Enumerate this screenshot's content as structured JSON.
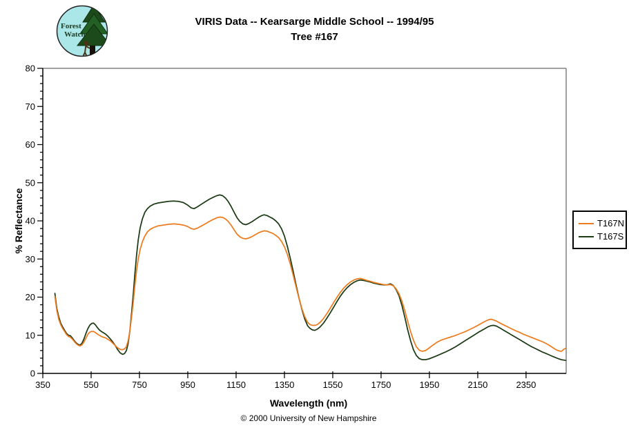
{
  "header": {
    "logo": {
      "line1": "Forest",
      "line2": "Watch"
    },
    "title_line1": "VIRIS Data -- Kearsarge Middle School -- 1994/95",
    "title_line2": "Tree #167"
  },
  "footer": {
    "copyright": "© 2000 University of New Hampshire"
  },
  "chart_data": {
    "type": "line",
    "title": "VIRIS Data -- Kearsarge Middle School -- 1994/95  Tree #167",
    "xlabel": "Wavelength (nm)",
    "ylabel": "% Reflectance",
    "x_range": [
      350,
      2516
    ],
    "y_range": [
      0,
      80
    ],
    "x_ticks": [
      350,
      550,
      750,
      950,
      1150,
      1350,
      1550,
      1750,
      1950,
      2150,
      2350
    ],
    "y_ticks": [
      0,
      10,
      20,
      30,
      40,
      50,
      60,
      70,
      80
    ],
    "y_minor_step": 2,
    "grid": "off",
    "legend_position": "right",
    "axis_color": "#000000",
    "frame_color": "#808080",
    "series": [
      {
        "name": "T167N",
        "color": "#ee7b1d"
      },
      {
        "name": "T167S",
        "color": "#1b3a13"
      }
    ],
    "points_format": [
      "wavelength_nm",
      "T167N",
      "T167S"
    ],
    "points": [
      [
        400,
        20.2,
        21.0
      ],
      [
        408,
        16.5,
        17.0
      ],
      [
        416,
        14.2,
        14.8
      ],
      [
        424,
        12.8,
        13.2
      ],
      [
        432,
        11.8,
        12.2
      ],
      [
        440,
        11.0,
        11.3
      ],
      [
        448,
        10.2,
        10.5
      ],
      [
        456,
        9.7,
        10.0
      ],
      [
        464,
        9.5,
        9.9
      ],
      [
        472,
        9.0,
        9.3
      ],
      [
        480,
        8.4,
        8.6
      ],
      [
        488,
        7.8,
        8.0
      ],
      [
        496,
        7.4,
        7.6
      ],
      [
        504,
        7.2,
        7.4
      ],
      [
        512,
        7.5,
        7.9
      ],
      [
        520,
        8.2,
        9.0
      ],
      [
        528,
        9.2,
        10.4
      ],
      [
        536,
        10.2,
        11.7
      ],
      [
        544,
        10.8,
        12.6
      ],
      [
        552,
        11.0,
        13.1
      ],
      [
        560,
        11.0,
        13.2
      ],
      [
        568,
        10.7,
        12.7
      ],
      [
        576,
        10.3,
        12.0
      ],
      [
        584,
        10.0,
        11.4
      ],
      [
        592,
        9.7,
        11.0
      ],
      [
        600,
        9.5,
        10.7
      ],
      [
        610,
        9.3,
        10.3
      ],
      [
        620,
        8.9,
        9.7
      ],
      [
        630,
        8.5,
        9.0
      ],
      [
        640,
        7.9,
        8.2
      ],
      [
        650,
        7.3,
        7.3
      ],
      [
        660,
        6.7,
        6.2
      ],
      [
        670,
        6.3,
        5.4
      ],
      [
        680,
        6.2,
        5.0
      ],
      [
        688,
        6.4,
        5.2
      ],
      [
        696,
        7.0,
        6.0
      ],
      [
        703,
        8.5,
        7.8
      ],
      [
        710,
        11.0,
        11.0
      ],
      [
        717,
        14.5,
        15.5
      ],
      [
        724,
        18.5,
        20.5
      ],
      [
        731,
        23.0,
        26.0
      ],
      [
        738,
        27.0,
        31.0
      ],
      [
        745,
        30.0,
        35.0
      ],
      [
        753,
        32.5,
        38.2
      ],
      [
        762,
        34.5,
        40.5
      ],
      [
        772,
        36.0,
        42.2
      ],
      [
        783,
        37.1,
        43.2
      ],
      [
        795,
        37.8,
        43.9
      ],
      [
        810,
        38.3,
        44.4
      ],
      [
        828,
        38.7,
        44.7
      ],
      [
        848,
        38.9,
        44.9
      ],
      [
        870,
        39.1,
        45.1
      ],
      [
        892,
        39.2,
        45.2
      ],
      [
        912,
        39.1,
        45.1
      ],
      [
        932,
        38.9,
        44.8
      ],
      [
        950,
        38.5,
        44.1
      ],
      [
        964,
        38.0,
        43.4
      ],
      [
        976,
        37.8,
        43.2
      ],
      [
        990,
        38.1,
        43.7
      ],
      [
        1005,
        38.6,
        44.3
      ],
      [
        1022,
        39.2,
        45.0
      ],
      [
        1040,
        39.9,
        45.7
      ],
      [
        1056,
        40.4,
        46.2
      ],
      [
        1070,
        40.8,
        46.6
      ],
      [
        1082,
        41.0,
        46.8
      ],
      [
        1094,
        40.9,
        46.6
      ],
      [
        1106,
        40.5,
        46.0
      ],
      [
        1118,
        39.8,
        45.0
      ],
      [
        1130,
        38.8,
        43.7
      ],
      [
        1142,
        37.6,
        42.2
      ],
      [
        1154,
        36.5,
        40.8
      ],
      [
        1166,
        35.8,
        39.8
      ],
      [
        1178,
        35.4,
        39.2
      ],
      [
        1190,
        35.3,
        39.0
      ],
      [
        1202,
        35.5,
        39.3
      ],
      [
        1216,
        35.9,
        39.8
      ],
      [
        1230,
        36.4,
        40.4
      ],
      [
        1244,
        36.9,
        41.0
      ],
      [
        1256,
        37.2,
        41.4
      ],
      [
        1266,
        37.4,
        41.6
      ],
      [
        1278,
        37.3,
        41.4
      ],
      [
        1290,
        37.0,
        41.0
      ],
      [
        1302,
        36.7,
        40.6
      ],
      [
        1314,
        36.2,
        40.0
      ],
      [
        1326,
        35.6,
        39.2
      ],
      [
        1338,
        34.6,
        37.9
      ],
      [
        1350,
        33.2,
        36.0
      ],
      [
        1362,
        31.2,
        33.3
      ],
      [
        1374,
        28.7,
        30.2
      ],
      [
        1386,
        25.8,
        26.8
      ],
      [
        1398,
        22.7,
        23.2
      ],
      [
        1410,
        19.7,
        19.8
      ],
      [
        1422,
        17.0,
        16.8
      ],
      [
        1434,
        14.9,
        14.3
      ],
      [
        1446,
        13.4,
        12.5
      ],
      [
        1456,
        12.8,
        11.8
      ],
      [
        1466,
        12.6,
        11.4
      ],
      [
        1476,
        12.6,
        11.3
      ],
      [
        1486,
        12.8,
        11.6
      ],
      [
        1498,
        13.4,
        12.2
      ],
      [
        1512,
        14.4,
        13.2
      ],
      [
        1526,
        15.7,
        14.5
      ],
      [
        1540,
        17.1,
        15.9
      ],
      [
        1554,
        18.6,
        17.4
      ],
      [
        1568,
        20.0,
        18.9
      ],
      [
        1582,
        21.3,
        20.3
      ],
      [
        1596,
        22.4,
        21.5
      ],
      [
        1610,
        23.3,
        22.5
      ],
      [
        1624,
        24.0,
        23.3
      ],
      [
        1638,
        24.5,
        23.9
      ],
      [
        1652,
        24.8,
        24.3
      ],
      [
        1664,
        24.9,
        24.5
      ],
      [
        1676,
        24.7,
        24.4
      ],
      [
        1690,
        24.4,
        24.2
      ],
      [
        1704,
        24.2,
        24.0
      ],
      [
        1718,
        23.9,
        23.7
      ],
      [
        1732,
        23.7,
        23.5
      ],
      [
        1746,
        23.5,
        23.3
      ],
      [
        1760,
        23.3,
        23.2
      ],
      [
        1774,
        23.2,
        23.2
      ],
      [
        1788,
        23.3,
        23.5
      ],
      [
        1800,
        23.0,
        23.1
      ],
      [
        1812,
        22.2,
        22.0
      ],
      [
        1824,
        20.9,
        20.4
      ],
      [
        1836,
        19.0,
        17.9
      ],
      [
        1848,
        16.5,
        14.8
      ],
      [
        1860,
        13.7,
        11.5
      ],
      [
        1872,
        11.0,
        8.6
      ],
      [
        1884,
        8.7,
        6.2
      ],
      [
        1896,
        7.0,
        4.7
      ],
      [
        1908,
        6.1,
        3.9
      ],
      [
        1920,
        5.8,
        3.6
      ],
      [
        1934,
        6.0,
        3.6
      ],
      [
        1948,
        6.6,
        3.8
      ],
      [
        1964,
        7.4,
        4.2
      ],
      [
        1980,
        8.1,
        4.6
      ],
      [
        1998,
        8.7,
        5.1
      ],
      [
        2016,
        9.1,
        5.6
      ],
      [
        2036,
        9.5,
        6.2
      ],
      [
        2056,
        9.9,
        6.9
      ],
      [
        2076,
        10.4,
        7.7
      ],
      [
        2096,
        10.9,
        8.5
      ],
      [
        2116,
        11.5,
        9.3
      ],
      [
        2136,
        12.1,
        10.1
      ],
      [
        2156,
        12.8,
        10.9
      ],
      [
        2176,
        13.5,
        11.6
      ],
      [
        2192,
        14.0,
        12.2
      ],
      [
        2204,
        14.2,
        12.5
      ],
      [
        2216,
        14.0,
        12.6
      ],
      [
        2228,
        13.7,
        12.4
      ],
      [
        2242,
        13.2,
        11.9
      ],
      [
        2258,
        12.7,
        11.3
      ],
      [
        2274,
        12.2,
        10.7
      ],
      [
        2290,
        11.7,
        10.1
      ],
      [
        2306,
        11.2,
        9.5
      ],
      [
        2322,
        10.8,
        8.9
      ],
      [
        2338,
        10.3,
        8.3
      ],
      [
        2354,
        9.9,
        7.7
      ],
      [
        2370,
        9.5,
        7.1
      ],
      [
        2386,
        9.1,
        6.6
      ],
      [
        2402,
        8.7,
        6.1
      ],
      [
        2418,
        8.3,
        5.6
      ],
      [
        2434,
        7.8,
        5.2
      ],
      [
        2448,
        7.3,
        4.8
      ],
      [
        2462,
        6.7,
        4.4
      ],
      [
        2474,
        6.2,
        4.1
      ],
      [
        2486,
        5.9,
        3.8
      ],
      [
        2496,
        5.8,
        3.6
      ],
      [
        2506,
        6.3,
        3.5
      ],
      [
        2514,
        6.6,
        3.4
      ]
    ]
  }
}
